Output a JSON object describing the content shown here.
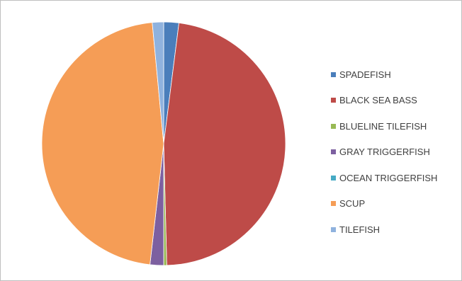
{
  "chart_data": {
    "type": "pie",
    "title": "",
    "categories": [
      "SPADEFISH",
      "BLACK SEA BASS",
      "BLUELINE TILEFISH",
      "GRAY TRIGGERFISH",
      "OCEAN TRIGGERFISH",
      "SCUP",
      "TILEFISH"
    ],
    "values": [
      2.0,
      47.6,
      0.4,
      1.8,
      0.0,
      46.7,
      1.5
    ],
    "colors": [
      "#4a7ebb",
      "#be4b48",
      "#98b954",
      "#7d60a0",
      "#46aac4",
      "#f59d56",
      "#8fb2de"
    ],
    "legend_position": "right",
    "start_angle_deg": 0,
    "direction": "clockwise"
  }
}
